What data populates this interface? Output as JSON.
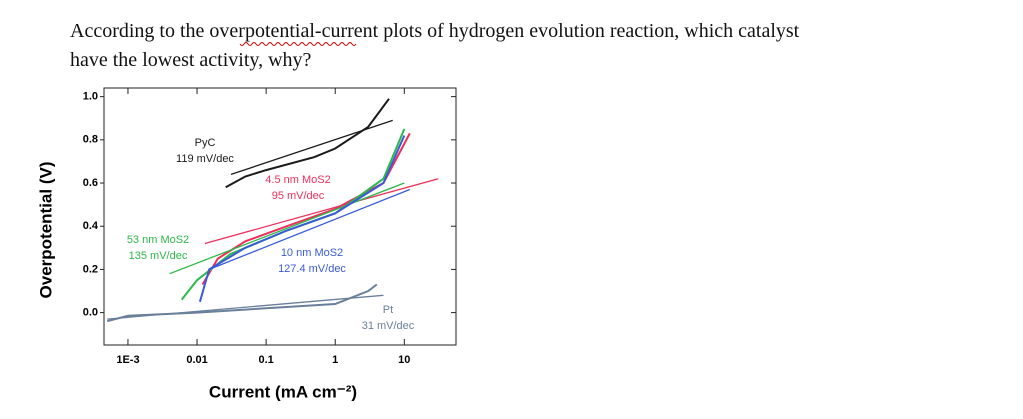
{
  "question": {
    "line1": "According to the overpotential-current plots of hydrogen evolution reaction, which catalyst",
    "line2": "have the lowest activity, why?"
  },
  "chart_data": {
    "type": "line",
    "xlabel": "Current (mA cm⁻²)",
    "ylabel": "Overpotential (V)",
    "xscale": "log",
    "xlim": [
      0.00045,
      56
    ],
    "ylim": [
      -0.15,
      1.04
    ],
    "xticks": [
      {
        "value": 0.001,
        "label": "1E-3"
      },
      0.01,
      0.1,
      1,
      10
    ],
    "yticks": [
      {
        "value": 0,
        "label": "0.0"
      },
      0.2,
      0.4,
      0.6,
      0.8,
      {
        "value": 1,
        "label": "1.0"
      }
    ],
    "series": [
      {
        "name": "PyC",
        "slope": "119 mV/dec",
        "color": "#1a1a1a",
        "x": [
          0.026,
          0.05,
          0.1,
          0.5,
          1,
          3,
          6
        ],
        "values": [
          0.58,
          0.63,
          0.66,
          0.72,
          0.76,
          0.86,
          0.99
        ],
        "fit": {
          "x": [
            0.031,
            6.8
          ],
          "values": [
            0.64,
            0.89
          ]
        }
      },
      {
        "name": "4.5 nm MoS2",
        "slope": "95 mV/dec",
        "color": "#ee2f5c",
        "x": [
          0.012,
          0.02,
          0.05,
          0.2,
          1,
          5,
          12
        ],
        "values": [
          0.13,
          0.25,
          0.33,
          0.4,
          0.48,
          0.6,
          0.83
        ],
        "fit": {
          "x": [
            0.013,
            31
          ],
          "values": [
            0.32,
            0.62
          ]
        }
      },
      {
        "name": "53 nm MoS2",
        "slope": "135 mV/dec",
        "color": "#2cb84a",
        "x": [
          0.006,
          0.01,
          0.03,
          0.2,
          1,
          5,
          10
        ],
        "values": [
          0.06,
          0.15,
          0.27,
          0.38,
          0.46,
          0.62,
          0.85
        ],
        "fit": {
          "x": [
            0.004,
            10
          ],
          "values": [
            0.18,
            0.6
          ]
        }
      },
      {
        "name": "10 nm MoS2",
        "slope": "127.4 mV/dec",
        "color": "#3a5bd8",
        "x": [
          0.011,
          0.015,
          0.05,
          0.2,
          1,
          5,
          10
        ],
        "values": [
          0.05,
          0.2,
          0.3,
          0.38,
          0.46,
          0.6,
          0.82
        ],
        "fit": {
          "x": [
            0.015,
            12
          ],
          "values": [
            0.2,
            0.57
          ]
        }
      },
      {
        "name": "Pt",
        "slope": "31 mV/dec",
        "color": "#6a7f99",
        "x": [
          0.0005,
          0.001,
          0.01,
          0.1,
          1,
          3,
          4
        ],
        "values": [
          -0.04,
          -0.015,
          0.0,
          0.02,
          0.04,
          0.1,
          0.13
        ],
        "fit": {
          "x": [
            0.0005,
            5
          ],
          "values": [
            -0.03,
            0.08
          ]
        }
      }
    ]
  }
}
